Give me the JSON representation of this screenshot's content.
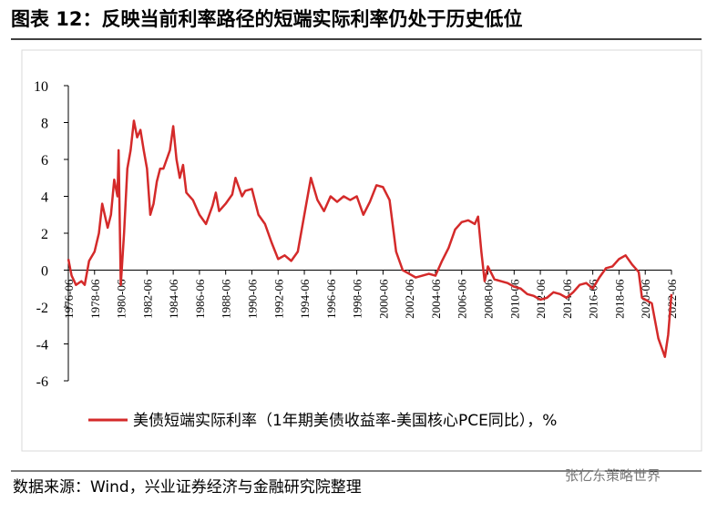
{
  "chart_data": {
    "type": "line",
    "title": "图表 12：反映当前利率路径的短端实际利率仍处于历史低位",
    "source": "数据来源：Wind，兴业证券经济与金融研究院整理",
    "watermark": "张亿东策略世界",
    "x": [
      "1976-06",
      "1976-09",
      "1977-01",
      "1977-06",
      "1977-09",
      "1978-01",
      "1978-06",
      "1978-10",
      "1979-01",
      "1979-06",
      "1979-09",
      "1979-12",
      "1980-03",
      "1980-04",
      "1980-06",
      "1980-09",
      "1980-12",
      "1981-03",
      "1981-06",
      "1981-09",
      "1981-12",
      "1982-03",
      "1982-06",
      "1982-09",
      "1982-12",
      "1983-03",
      "1983-06",
      "1983-09",
      "1983-12",
      "1984-03",
      "1984-06",
      "1984-09",
      "1984-12",
      "1985-03",
      "1985-06",
      "1985-12",
      "1986-06",
      "1986-12",
      "1987-06",
      "1987-09",
      "1987-12",
      "1988-06",
      "1988-12",
      "1989-03",
      "1989-06",
      "1989-09",
      "1989-12",
      "1990-06",
      "1990-12",
      "1991-06",
      "1991-12",
      "1992-06",
      "1992-12",
      "1993-06",
      "1993-12",
      "1994-06",
      "1994-12",
      "1995-06",
      "1995-12",
      "1996-06",
      "1996-12",
      "1997-06",
      "1997-12",
      "1998-06",
      "1998-12",
      "1999-06",
      "1999-12",
      "2000-06",
      "2000-12",
      "2001-06",
      "2001-12",
      "2002-06",
      "2002-12",
      "2003-06",
      "2003-12",
      "2004-06",
      "2004-12",
      "2005-06",
      "2005-12",
      "2006-06",
      "2006-12",
      "2007-06",
      "2007-09",
      "2007-12",
      "2008-03",
      "2008-06",
      "2008-12",
      "2009-06",
      "2009-12",
      "2010-06",
      "2010-12",
      "2011-06",
      "2011-12",
      "2012-06",
      "2012-12",
      "2013-06",
      "2013-12",
      "2014-06",
      "2014-12",
      "2015-06",
      "2015-12",
      "2016-06",
      "2016-12",
      "2017-06",
      "2017-12",
      "2018-06",
      "2018-12",
      "2019-06",
      "2019-12",
      "2020-03",
      "2020-06",
      "2020-12",
      "2021-06",
      "2021-12",
      "2022-03",
      "2022-06"
    ],
    "series": [
      {
        "name": "美债短端实际利率（1年期美债收益率-美国核心PCE同比），%",
        "color": "#d42a2a",
        "values": [
          0.6,
          -0.3,
          -0.8,
          -0.6,
          -0.8,
          0.5,
          1.0,
          2.0,
          3.6,
          2.3,
          3.0,
          4.9,
          4.0,
          6.5,
          -0.8,
          2.0,
          5.5,
          6.5,
          8.1,
          7.2,
          7.6,
          6.5,
          5.5,
          3.0,
          3.6,
          4.8,
          5.5,
          5.5,
          6.0,
          6.5,
          7.8,
          6.0,
          5.0,
          5.7,
          4.2,
          3.8,
          3.0,
          2.5,
          3.5,
          4.2,
          3.2,
          3.6,
          4.1,
          5.0,
          4.5,
          4.0,
          4.3,
          4.4,
          3.0,
          2.5,
          1.5,
          0.6,
          0.8,
          0.5,
          1.0,
          3.0,
          5.0,
          3.8,
          3.2,
          4.0,
          3.7,
          4.0,
          3.8,
          4.0,
          3.0,
          3.7,
          4.6,
          4.5,
          3.8,
          1.0,
          0.0,
          -0.2,
          -0.4,
          -0.3,
          -0.2,
          -0.3,
          0.5,
          1.2,
          2.2,
          2.6,
          2.7,
          2.5,
          2.9,
          1.0,
          -0.6,
          0.2,
          -0.5,
          -0.6,
          -0.7,
          -0.9,
          -1.0,
          -1.3,
          -1.4,
          -1.6,
          -1.5,
          -1.2,
          -1.3,
          -1.5,
          -1.2,
          -0.8,
          -0.7,
          -1.0,
          -0.4,
          0.1,
          0.2,
          0.6,
          0.8,
          0.3,
          -0.1,
          -1.5,
          -1.6,
          -1.8,
          -3.7,
          -4.7,
          -3.5,
          -1.3
        ]
      }
    ],
    "xlim": [
      "1976-06",
      "2022-06"
    ],
    "xticks": [
      "1976-06",
      "1978-06",
      "1980-06",
      "1982-06",
      "1984-06",
      "1986-06",
      "1988-06",
      "1990-06",
      "1992-06",
      "1994-06",
      "1996-06",
      "1998-06",
      "2000-06",
      "2002-06",
      "2004-06",
      "2006-06",
      "2008-06",
      "2010-06",
      "2012-06",
      "2014-06",
      "2016-06",
      "2018-06",
      "2020-06",
      "2022-06"
    ],
    "ylim": [
      -6,
      10
    ],
    "yticks": [
      -6,
      -4,
      -2,
      0,
      2,
      4,
      6,
      8,
      10
    ]
  }
}
